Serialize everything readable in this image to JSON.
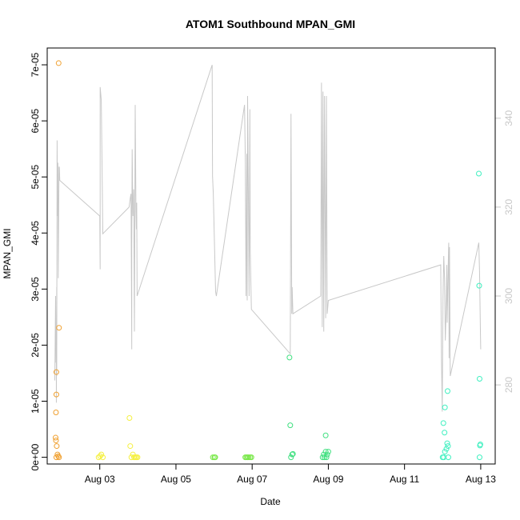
{
  "chart_data": {
    "type": "scatter",
    "title": "ATOM1 Southbound MPAN_GMI",
    "xlabel": "Date",
    "ylabel": "MPAN_GMI",
    "x_unit": "days since Aug 01 (00:00)",
    "xlim": [
      1.62,
      13.38
    ],
    "ylim": [
      -1.2e-06,
      7.3e-05
    ],
    "y2lim": [
      262.2,
      355.8
    ],
    "x_ticks": [
      {
        "x": 3,
        "label": "Aug 03"
      },
      {
        "x": 5,
        "label": "Aug 05"
      },
      {
        "x": 7,
        "label": "Aug 07"
      },
      {
        "x": 9,
        "label": "Aug 09"
      },
      {
        "x": 11,
        "label": "Aug 11"
      },
      {
        "x": 13,
        "label": "Aug 13"
      }
    ],
    "y_ticks": [
      {
        "y": 0,
        "label": "0e+00"
      },
      {
        "y": 1e-05,
        "label": "1e-05"
      },
      {
        "y": 2e-05,
        "label": "2e-05"
      },
      {
        "y": 3e-05,
        "label": "3e-05"
      },
      {
        "y": 4e-05,
        "label": "4e-05"
      },
      {
        "y": 5e-05,
        "label": "5e-05"
      },
      {
        "y": 6e-05,
        "label": "6e-05"
      },
      {
        "y": 7e-05,
        "label": "7e-05"
      }
    ],
    "y2_ticks": [
      {
        "y": 280,
        "label": "280"
      },
      {
        "y": 300,
        "label": "300"
      },
      {
        "y": 320,
        "label": "320"
      },
      {
        "y": 340,
        "label": "340"
      }
    ],
    "grid": false,
    "legend": "none",
    "colors": {
      "line": "#c8c8c8",
      "axis": "#000000",
      "right_axis": "#c8c8c8"
    },
    "series": [
      {
        "color": "#f0a030",
        "points": [
          [
            1.86,
            0.0
          ],
          [
            1.84,
            3.5e-06
          ],
          [
            1.85,
            3e-06
          ],
          [
            1.87,
            2e-06
          ],
          [
            1.89,
            5e-07
          ],
          [
            1.91,
            2e-07
          ],
          [
            1.93,
            0.0
          ],
          [
            1.85,
            8e-06
          ],
          [
            1.86,
            1.12e-05
          ],
          [
            1.86,
            1.52e-05
          ],
          [
            1.93,
            2.31e-05
          ],
          [
            1.92,
            7.03e-05
          ]
        ]
      },
      {
        "color": "#f5f040",
        "points": [
          [
            2.97,
            0.0
          ],
          [
            3.01,
            2e-07
          ],
          [
            3.04,
            5e-07
          ],
          [
            3.08,
            0.0
          ],
          [
            3.8,
            2e-06
          ],
          [
            3.83,
            0.0
          ],
          [
            3.87,
            5e-07
          ],
          [
            3.9,
            0.0
          ],
          [
            3.93,
            0.0
          ],
          [
            3.96,
            0.0
          ],
          [
            3.99,
            0.0
          ],
          [
            3.78,
            7e-06
          ]
        ]
      },
      {
        "color": "#7ae84a",
        "points": [
          [
            5.97,
            0.0
          ],
          [
            6.01,
            0.0
          ],
          [
            6.03,
            0.0
          ],
          [
            6.82,
            0.0
          ],
          [
            6.85,
            0.0
          ],
          [
            6.88,
            0.0
          ],
          [
            6.91,
            0.0
          ],
          [
            6.95,
            0.0
          ],
          [
            6.98,
            0.0
          ]
        ]
      },
      {
        "color": "#40e080",
        "points": [
          [
            8.02,
            0.0
          ],
          [
            8.05,
            5e-07
          ],
          [
            8.07,
            6e-07
          ],
          [
            8.0,
            5.7e-06
          ],
          [
            7.98,
            1.78e-05
          ],
          [
            8.85,
            0.0
          ],
          [
            8.88,
            5e-07
          ],
          [
            8.9,
            0.0
          ],
          [
            8.93,
            1e-06
          ],
          [
            8.95,
            0.0
          ],
          [
            8.97,
            5e-07
          ],
          [
            9.0,
            1e-06
          ],
          [
            8.93,
            3.9e-06
          ]
        ]
      },
      {
        "color": "#40f0c0",
        "points": [
          [
            12.0,
            0.0
          ],
          [
            12.03,
            0.0
          ],
          [
            12.06,
            1e-06
          ],
          [
            12.1,
            1.5e-06
          ],
          [
            12.12,
            2.5e-06
          ],
          [
            12.15,
            0.0
          ],
          [
            12.02,
            6.1e-06
          ],
          [
            12.06,
            8.9e-06
          ],
          [
            12.05,
            4.4e-06
          ],
          [
            12.13,
            1.18e-05
          ],
          [
            12.14,
            2e-06
          ],
          [
            12.95,
            5.06e-05
          ],
          [
            12.96,
            3.06e-05
          ],
          [
            12.97,
            1.4e-05
          ],
          [
            12.99,
            2.3e-06
          ],
          [
            12.98,
            2.1e-06
          ],
          [
            12.97,
            0.0
          ]
        ]
      }
    ],
    "line_series": {
      "axis": "right",
      "color": "#c8c8c8",
      "points": [
        [
          1.82,
          281
        ],
        [
          1.84,
          300
        ],
        [
          1.85,
          285
        ],
        [
          1.86,
          292
        ],
        [
          1.86,
          276
        ],
        [
          1.87,
          302
        ],
        [
          1.87,
          282
        ],
        [
          1.88,
          335
        ],
        [
          1.89,
          318
        ],
        [
          1.9,
          330
        ],
        [
          1.91,
          304
        ],
        [
          1.93,
          329
        ],
        [
          1.94,
          329
        ],
        [
          1.95,
          326
        ],
        [
          3.0,
          318
        ],
        [
          3.01,
          306
        ],
        [
          3.01,
          347
        ],
        [
          3.04,
          344
        ],
        [
          3.08,
          314
        ],
        [
          3.77,
          320
        ],
        [
          3.8,
          322
        ],
        [
          3.82,
          323
        ],
        [
          3.84,
          288
        ],
        [
          3.84,
          312
        ],
        [
          3.85,
          333
        ],
        [
          3.87,
          318
        ],
        [
          3.89,
          324
        ],
        [
          3.91,
          292
        ],
        [
          3.93,
          343
        ],
        [
          3.95,
          319
        ],
        [
          3.96,
          315
        ],
        [
          3.97,
          321
        ],
        [
          3.98,
          300
        ],
        [
          5.95,
          352
        ],
        [
          5.96,
          327
        ],
        [
          5.98,
          323
        ],
        [
          6.04,
          301
        ],
        [
          6.06,
          300
        ],
        [
          6.8,
          343
        ],
        [
          6.82,
          331
        ],
        [
          6.84,
          300
        ],
        [
          6.86,
          332
        ],
        [
          6.87,
          299
        ],
        [
          6.88,
          345
        ],
        [
          6.9,
          324
        ],
        [
          6.92,
          300
        ],
        [
          6.94,
          342
        ],
        [
          6.95,
          310
        ],
        [
          6.98,
          297
        ],
        [
          8.0,
          287
        ],
        [
          8.02,
          341
        ],
        [
          8.04,
          296
        ],
        [
          8.05,
          302
        ],
        [
          8.07,
          296
        ],
        [
          8.8,
          300
        ],
        [
          8.82,
          348
        ],
        [
          8.84,
          293
        ],
        [
          8.86,
          346
        ],
        [
          8.88,
          292
        ],
        [
          8.9,
          345
        ],
        [
          8.93,
          295
        ],
        [
          8.95,
          345
        ],
        [
          8.97,
          296
        ],
        [
          9.0,
          299
        ],
        [
          11.95,
          307
        ],
        [
          11.97,
          286
        ],
        [
          11.99,
          274
        ],
        [
          12.01,
          300
        ],
        [
          12.03,
          309
        ],
        [
          12.05,
          304
        ],
        [
          12.07,
          290
        ],
        [
          12.09,
          296
        ],
        [
          12.11,
          307
        ],
        [
          12.12,
          294
        ],
        [
          12.14,
          304
        ],
        [
          12.16,
          312
        ],
        [
          12.17,
          286
        ],
        [
          12.18,
          311
        ],
        [
          12.2,
          282
        ],
        [
          12.95,
          312
        ],
        [
          12.97,
          305
        ],
        [
          12.99,
          293
        ],
        [
          13.0,
          288
        ]
      ]
    }
  }
}
